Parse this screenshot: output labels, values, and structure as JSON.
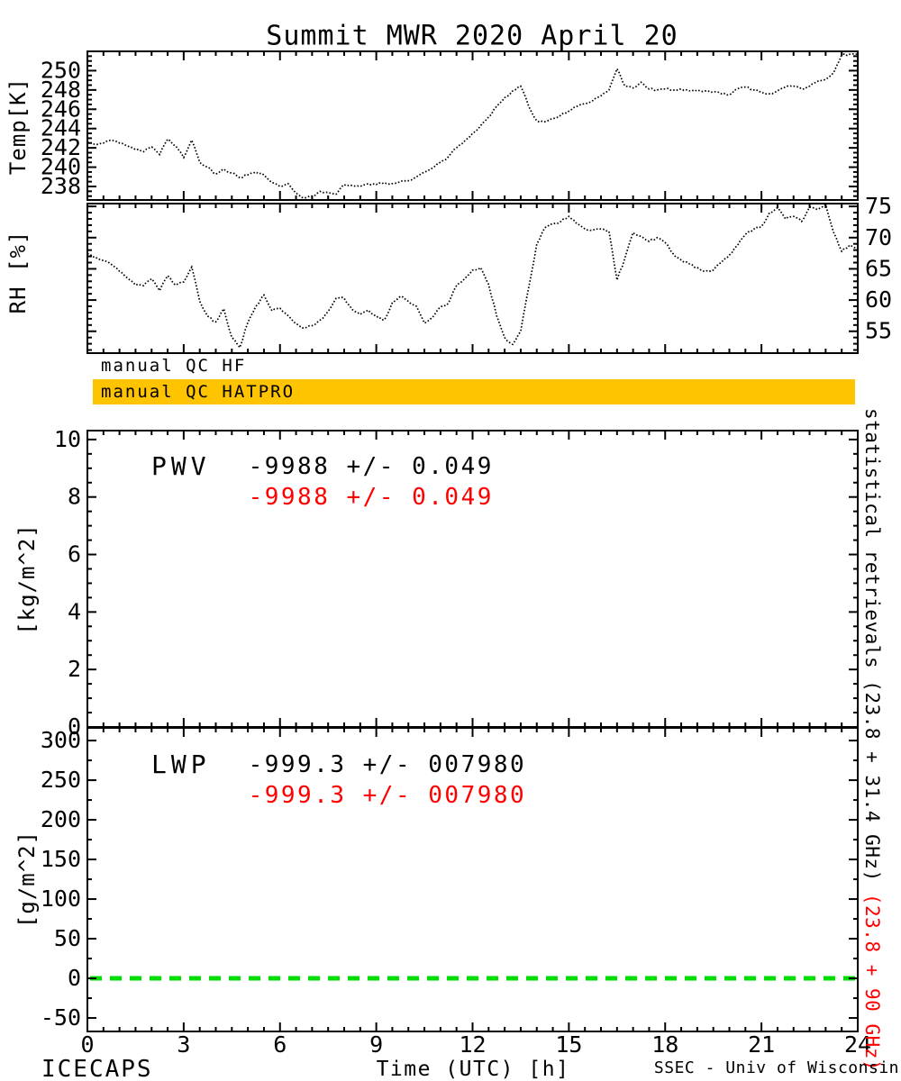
{
  "title": "Summit MWR 2020 April 20",
  "colors": {
    "accent_red": "#ff0000",
    "qc_bar_orange": "#ffc400",
    "zero_line_green": "#00dd00",
    "trace_black": "#000000"
  },
  "qc": {
    "hf": "manual QC HF",
    "hatpro": "manual QC HATPRO"
  },
  "stats": {
    "pwv": {
      "name": "PWV",
      "line1": "-9988 +/- 0.049",
      "line2": "-9988 +/- 0.049"
    },
    "lwp": {
      "name": "LWP",
      "line1": "-999.3 +/- 007980",
      "line2": "-999.3 +/- 007980"
    }
  },
  "retrievals_note": {
    "black": "statistical retrievals (23.8 + 31.4 GHz)",
    "red": " (23.8 + 90 GHz)"
  },
  "footer": {
    "left": "ICECAPS",
    "credit": "SSEC - Univ of Wisconsin"
  },
  "x_axis": {
    "label": "Time (UTC) [h]",
    "ticks": [
      0,
      3,
      6,
      9,
      12,
      15,
      18,
      21,
      24
    ],
    "minor_step": 0.5,
    "lim": [
      0,
      24
    ]
  },
  "chart_data": [
    {
      "id": "temp",
      "type": "line",
      "ylabel": "Temp[K]",
      "x_start": 0,
      "x_step": 0.25,
      "xlim": [
        0,
        24
      ],
      "ylim": [
        236.6,
        252.0
      ],
      "yticks": [
        238,
        240,
        242,
        244,
        246,
        248,
        250
      ],
      "ytick_minor": 0.5,
      "ytick_side": "left",
      "grid": false,
      "legend": "none",
      "values": [
        242.6,
        242.4,
        242.5,
        242.8,
        242.5,
        242.2,
        241.8,
        241.6,
        242.1,
        241.3,
        242.9,
        242.2,
        241.0,
        242.8,
        240.5,
        240.0,
        239.3,
        239.8,
        239.4,
        238.9,
        239.2,
        239.5,
        239.2,
        238.4,
        238.0,
        238.3,
        237.3,
        236.8,
        237.0,
        237.5,
        237.4,
        237.2,
        238.2,
        238.1,
        238.0,
        238.3,
        238.2,
        238.4,
        238.3,
        238.5,
        238.6,
        239.0,
        239.5,
        239.9,
        240.5,
        241.1,
        242.0,
        242.7,
        243.5,
        244.3,
        245.2,
        246.3,
        247.2,
        247.9,
        248.4,
        246.3,
        244.8,
        244.7,
        245.0,
        245.4,
        245.8,
        246.3,
        246.6,
        246.9,
        247.4,
        248.0,
        250.2,
        248.4,
        248.2,
        248.8,
        248.1,
        248.0,
        248.1,
        248.0,
        248.1,
        247.9,
        248.0,
        247.9,
        247.8,
        247.6,
        247.5,
        248.1,
        248.3,
        248.0,
        247.8,
        247.6,
        247.9,
        248.3,
        248.4,
        248.1,
        248.4,
        248.9,
        249.1,
        249.8,
        251.6,
        251.7,
        251.7
      ]
    },
    {
      "id": "rh",
      "type": "line",
      "ylabel": "RH [%]",
      "x_start": 0,
      "x_step": 0.25,
      "xlim": [
        0,
        24
      ],
      "ylim": [
        51.5,
        75.45
      ],
      "yticks": [
        55,
        60,
        65,
        70,
        75
      ],
      "ytick_minor": 1,
      "ytick_side": "right",
      "grid": false,
      "legend": "none",
      "values": [
        67.4,
        66.9,
        66.3,
        65.7,
        64.6,
        63.5,
        62.4,
        62.3,
        63.4,
        61.5,
        63.9,
        62.4,
        62.9,
        65.3,
        59.8,
        57.4,
        56.5,
        58.6,
        54.0,
        52.4,
        56.4,
        59.0,
        60.8,
        58.3,
        58.7,
        57.5,
        56.2,
        55.5,
        55.9,
        56.8,
        58.2,
        60.3,
        60.3,
        58.5,
        57.7,
        58.4,
        57.3,
        56.8,
        59.6,
        60.6,
        59.8,
        59.0,
        56.3,
        57.2,
        58.9,
        59.5,
        62.3,
        63.4,
        64.8,
        65.2,
        62.5,
        57.5,
        54.0,
        52.9,
        55.0,
        62.0,
        69.0,
        71.6,
        72.2,
        72.6,
        73.4,
        72.2,
        71.4,
        71.2,
        71.4,
        71.0,
        63.2,
        66.8,
        70.8,
        70.2,
        69.4,
        70.0,
        69.2,
        67.4,
        66.4,
        65.8,
        65.2,
        64.6,
        64.8,
        66.0,
        67.2,
        68.7,
        70.5,
        71.3,
        71.8,
        74.0,
        74.8,
        73.0,
        73.4,
        72.6,
        74.9,
        74.5,
        75.3,
        70.8,
        67.8,
        68.8,
        68.0
      ]
    },
    {
      "id": "pwv",
      "type": "line",
      "ylabel": "[kg/m^2]",
      "x_start": 0,
      "x_step": 0.25,
      "xlim": [
        0,
        24
      ],
      "ylim": [
        0,
        10.31
      ],
      "yticks": [
        0,
        2,
        4,
        6,
        8,
        10
      ],
      "ytick_minor": 0.5,
      "ytick_side": "left",
      "grid": false,
      "legend": "none",
      "values": []
    },
    {
      "id": "lwp",
      "type": "line",
      "ylabel": "[g/m^2]",
      "x_start": 0,
      "x_step": 0.25,
      "xlim": [
        0,
        24
      ],
      "ylim": [
        -67,
        316
      ],
      "yticks": [
        -50,
        0,
        50,
        100,
        150,
        200,
        250,
        300
      ],
      "ytick_minor": 25,
      "ytick_side": "left",
      "grid": false,
      "legend": "none",
      "values": [],
      "zero_line": {
        "value": 0,
        "color": "#00dd00",
        "style": "dashed"
      }
    }
  ]
}
